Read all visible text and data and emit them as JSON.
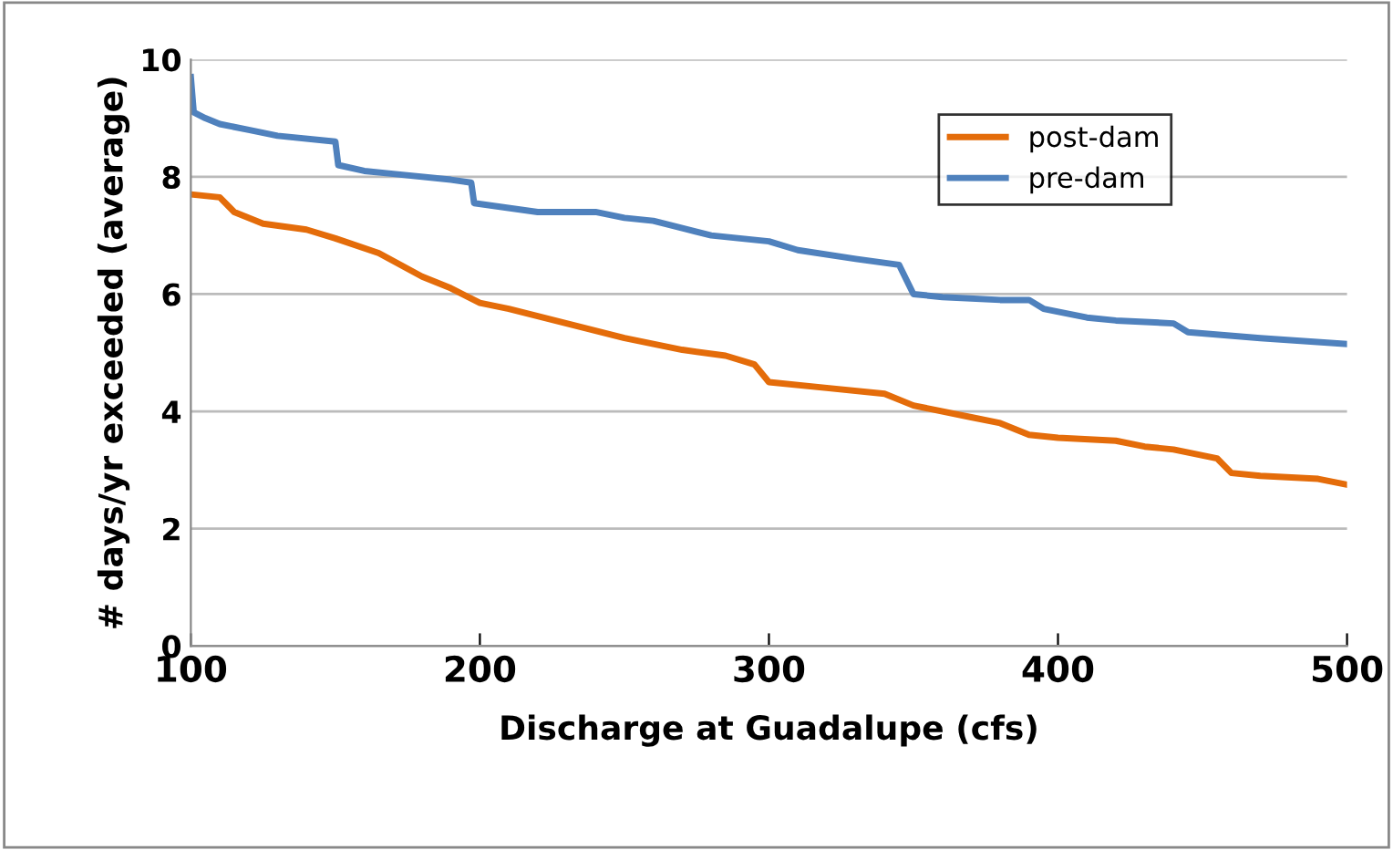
{
  "chart_data": {
    "type": "line",
    "xlabel": "Discharge at Guadalupe (cfs)",
    "ylabel": "# days/yr exceeded (average)",
    "xlim": [
      100,
      500
    ],
    "xticks": [
      100,
      200,
      300,
      400,
      500
    ],
    "ylim": [
      0,
      10
    ],
    "yticks": [
      0,
      2,
      4,
      6,
      8,
      10
    ],
    "grid": "y",
    "legend": "top right",
    "line_style": "solid",
    "marker": "none",
    "series": [
      {
        "name": "post-dam",
        "color": "#e46c0a",
        "x": [
          100,
          110,
          115,
          125,
          140,
          150,
          165,
          180,
          190,
          200,
          210,
          230,
          250,
          270,
          285,
          295,
          300,
          320,
          340,
          350,
          370,
          380,
          390,
          400,
          420,
          430,
          440,
          455,
          460,
          470,
          490,
          500
        ],
        "values": [
          7.7,
          7.65,
          7.4,
          7.2,
          7.1,
          6.95,
          6.7,
          6.3,
          6.1,
          5.85,
          5.75,
          5.5,
          5.25,
          5.05,
          4.95,
          4.8,
          4.5,
          4.4,
          4.3,
          4.1,
          3.9,
          3.8,
          3.6,
          3.55,
          3.5,
          3.4,
          3.35,
          3.2,
          2.95,
          2.9,
          2.85,
          2.75
        ]
      },
      {
        "name": "pre-dam",
        "color": "#4f81bd",
        "x": [
          100,
          101,
          105,
          110,
          120,
          130,
          150,
          151,
          160,
          170,
          190,
          197,
          198,
          220,
          240,
          250,
          260,
          280,
          300,
          310,
          330,
          345,
          350,
          360,
          380,
          390,
          395,
          410,
          420,
          440,
          445,
          470,
          500
        ],
        "values": [
          9.7,
          9.1,
          9.0,
          8.9,
          8.8,
          8.7,
          8.6,
          8.2,
          8.1,
          8.05,
          7.95,
          7.9,
          7.55,
          7.4,
          7.4,
          7.3,
          7.25,
          7.0,
          6.9,
          6.75,
          6.6,
          6.5,
          6.0,
          5.95,
          5.9,
          5.9,
          5.75,
          5.6,
          5.55,
          5.5,
          5.35,
          5.25,
          5.15
        ]
      }
    ]
  }
}
